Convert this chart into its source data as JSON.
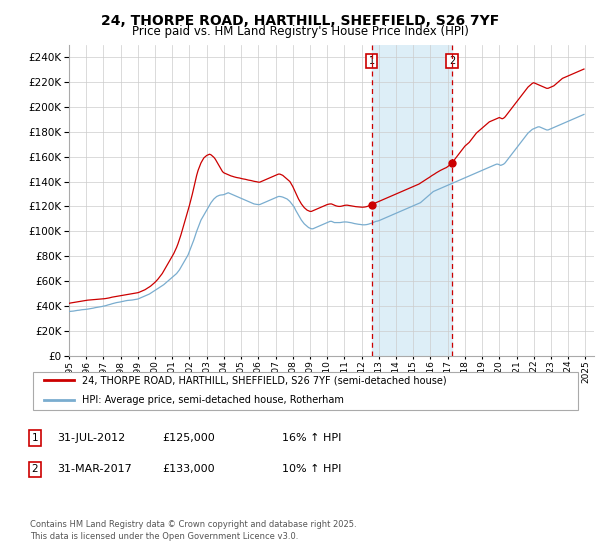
{
  "title": "24, THORPE ROAD, HARTHILL, SHEFFIELD, S26 7YF",
  "subtitle": "Price paid vs. HM Land Registry's House Price Index (HPI)",
  "ylim": [
    0,
    250000
  ],
  "yticks": [
    0,
    20000,
    40000,
    60000,
    80000,
    100000,
    120000,
    140000,
    160000,
    180000,
    200000,
    220000,
    240000
  ],
  "xlim": [
    1995.0,
    2025.5
  ],
  "line1_color": "#cc0000",
  "line2_color": "#7aadcf",
  "fill_color": "#ddeef7",
  "annotation1_year": 2012.58,
  "annotation2_year": 2017.25,
  "legend_label1": "24, THORPE ROAD, HARTHILL, SHEFFIELD, S26 7YF (semi-detached house)",
  "legend_label2": "HPI: Average price, semi-detached house, Rotherham",
  "sale1_date": "31-JUL-2012",
  "sale1_price": "£125,000",
  "sale1_hpi": "16% ↑ HPI",
  "sale2_date": "31-MAR-2017",
  "sale2_price": "£133,000",
  "sale2_hpi": "10% ↑ HPI",
  "footnote3": "Contains HM Land Registry data © Crown copyright and database right 2025.",
  "footnote4": "This data is licensed under the Open Government Licence v3.0.",
  "hpi_years": [
    1995.0,
    1995.083,
    1995.167,
    1995.25,
    1995.333,
    1995.417,
    1995.5,
    1995.583,
    1995.667,
    1995.75,
    1995.833,
    1995.917,
    1996.0,
    1996.083,
    1996.167,
    1996.25,
    1996.333,
    1996.417,
    1996.5,
    1996.583,
    1996.667,
    1996.75,
    1996.833,
    1996.917,
    1997.0,
    1997.083,
    1997.167,
    1997.25,
    1997.333,
    1997.417,
    1997.5,
    1997.583,
    1997.667,
    1997.75,
    1997.833,
    1997.917,
    1998.0,
    1998.083,
    1998.167,
    1998.25,
    1998.333,
    1998.417,
    1998.5,
    1998.583,
    1998.667,
    1998.75,
    1998.833,
    1998.917,
    1999.0,
    1999.083,
    1999.167,
    1999.25,
    1999.333,
    1999.417,
    1999.5,
    1999.583,
    1999.667,
    1999.75,
    1999.833,
    1999.917,
    2000.0,
    2000.083,
    2000.167,
    2000.25,
    2000.333,
    2000.417,
    2000.5,
    2000.583,
    2000.667,
    2000.75,
    2000.833,
    2000.917,
    2001.0,
    2001.083,
    2001.167,
    2001.25,
    2001.333,
    2001.417,
    2001.5,
    2001.583,
    2001.667,
    2001.75,
    2001.833,
    2001.917,
    2002.0,
    2002.083,
    2002.167,
    2002.25,
    2002.333,
    2002.417,
    2002.5,
    2002.583,
    2002.667,
    2002.75,
    2002.833,
    2002.917,
    2003.0,
    2003.083,
    2003.167,
    2003.25,
    2003.333,
    2003.417,
    2003.5,
    2003.583,
    2003.667,
    2003.75,
    2003.833,
    2003.917,
    2004.0,
    2004.083,
    2004.167,
    2004.25,
    2004.333,
    2004.417,
    2004.5,
    2004.583,
    2004.667,
    2004.75,
    2004.833,
    2004.917,
    2005.0,
    2005.083,
    2005.167,
    2005.25,
    2005.333,
    2005.417,
    2005.5,
    2005.583,
    2005.667,
    2005.75,
    2005.833,
    2005.917,
    2006.0,
    2006.083,
    2006.167,
    2006.25,
    2006.333,
    2006.417,
    2006.5,
    2006.583,
    2006.667,
    2006.75,
    2006.833,
    2006.917,
    2007.0,
    2007.083,
    2007.167,
    2007.25,
    2007.333,
    2007.417,
    2007.5,
    2007.583,
    2007.667,
    2007.75,
    2007.833,
    2007.917,
    2008.0,
    2008.083,
    2008.167,
    2008.25,
    2008.333,
    2008.417,
    2008.5,
    2008.583,
    2008.667,
    2008.75,
    2008.833,
    2008.917,
    2009.0,
    2009.083,
    2009.167,
    2009.25,
    2009.333,
    2009.417,
    2009.5,
    2009.583,
    2009.667,
    2009.75,
    2009.833,
    2009.917,
    2010.0,
    2010.083,
    2010.167,
    2010.25,
    2010.333,
    2010.417,
    2010.5,
    2010.583,
    2010.667,
    2010.75,
    2010.833,
    2010.917,
    2011.0,
    2011.083,
    2011.167,
    2011.25,
    2011.333,
    2011.417,
    2011.5,
    2011.583,
    2011.667,
    2011.75,
    2011.833,
    2011.917,
    2012.0,
    2012.083,
    2012.167,
    2012.25,
    2012.333,
    2012.417,
    2012.5,
    2012.583,
    2012.667,
    2012.75,
    2012.833,
    2012.917,
    2013.0,
    2013.083,
    2013.167,
    2013.25,
    2013.333,
    2013.417,
    2013.5,
    2013.583,
    2013.667,
    2013.75,
    2013.833,
    2013.917,
    2014.0,
    2014.083,
    2014.167,
    2014.25,
    2014.333,
    2014.417,
    2014.5,
    2014.583,
    2014.667,
    2014.75,
    2014.833,
    2014.917,
    2015.0,
    2015.083,
    2015.167,
    2015.25,
    2015.333,
    2015.417,
    2015.5,
    2015.583,
    2015.667,
    2015.75,
    2015.833,
    2015.917,
    2016.0,
    2016.083,
    2016.167,
    2016.25,
    2016.333,
    2016.417,
    2016.5,
    2016.583,
    2016.667,
    2016.75,
    2016.833,
    2016.917,
    2017.0,
    2017.083,
    2017.167,
    2017.25,
    2017.333,
    2017.417,
    2017.5,
    2017.583,
    2017.667,
    2017.75,
    2017.833,
    2017.917,
    2018.0,
    2018.083,
    2018.167,
    2018.25,
    2018.333,
    2018.417,
    2018.5,
    2018.583,
    2018.667,
    2018.75,
    2018.833,
    2018.917,
    2019.0,
    2019.083,
    2019.167,
    2019.25,
    2019.333,
    2019.417,
    2019.5,
    2019.583,
    2019.667,
    2019.75,
    2019.833,
    2019.917,
    2020.0,
    2020.083,
    2020.167,
    2020.25,
    2020.333,
    2020.417,
    2020.5,
    2020.583,
    2020.667,
    2020.75,
    2020.833,
    2020.917,
    2021.0,
    2021.083,
    2021.167,
    2021.25,
    2021.333,
    2021.417,
    2021.5,
    2021.583,
    2021.667,
    2021.75,
    2021.833,
    2021.917,
    2022.0,
    2022.083,
    2022.167,
    2022.25,
    2022.333,
    2022.417,
    2022.5,
    2022.583,
    2022.667,
    2022.75,
    2022.833,
    2022.917,
    2023.0,
    2023.083,
    2023.167,
    2023.25,
    2023.333,
    2023.417,
    2023.5,
    2023.583,
    2023.667,
    2023.75,
    2023.833,
    2023.917,
    2024.0,
    2024.083,
    2024.167,
    2024.25,
    2024.333,
    2024.417,
    2024.5,
    2024.583,
    2024.667,
    2024.75,
    2024.833,
    2024.917
  ],
  "hpi_values": [
    35500,
    35600,
    35700,
    35800,
    36000,
    36200,
    36400,
    36500,
    36700,
    36900,
    37000,
    37100,
    37200,
    37400,
    37600,
    37800,
    38000,
    38200,
    38500,
    38700,
    38900,
    39100,
    39300,
    39500,
    39800,
    40000,
    40300,
    40700,
    41000,
    41300,
    41700,
    42000,
    42300,
    42600,
    42800,
    43000,
    43200,
    43500,
    43700,
    44000,
    44200,
    44400,
    44500,
    44600,
    44700,
    44900,
    45100,
    45300,
    45500,
    46000,
    46500,
    47000,
    47500,
    48000,
    48500,
    49000,
    49500,
    50200,
    51000,
    51800,
    52500,
    53200,
    54000,
    54800,
    55500,
    56300,
    57000,
    58000,
    59000,
    60000,
    61000,
    62000,
    63000,
    64000,
    65000,
    66000,
    67500,
    69000,
    71000,
    73000,
    75000,
    77000,
    79000,
    81000,
    84000,
    87000,
    90000,
    93000,
    96500,
    100000,
    103000,
    106000,
    109000,
    111000,
    113000,
    115000,
    117000,
    119000,
    121000,
    123000,
    124500,
    126000,
    127000,
    128000,
    128500,
    129000,
    129200,
    129300,
    129500,
    130000,
    130500,
    131000,
    130500,
    130000,
    129500,
    129000,
    128500,
    128000,
    127500,
    127000,
    126500,
    126000,
    125500,
    125000,
    124500,
    124000,
    123500,
    123000,
    122500,
    122000,
    121800,
    121600,
    121500,
    121500,
    122000,
    122500,
    123000,
    123500,
    124000,
    124500,
    125000,
    125500,
    126000,
    126500,
    127000,
    127500,
    128000,
    128000,
    127800,
    127500,
    127000,
    126500,
    126000,
    125000,
    124000,
    122500,
    121000,
    119500,
    117000,
    115000,
    113000,
    111000,
    109000,
    107500,
    106000,
    105000,
    104000,
    103000,
    102500,
    102000,
    102000,
    102500,
    103000,
    103500,
    104000,
    104500,
    105000,
    105500,
    106000,
    106500,
    107000,
    107500,
    108000,
    108000,
    107500,
    107000,
    107000,
    107000,
    107000,
    107000,
    107200,
    107400,
    107500,
    107500,
    107400,
    107200,
    107000,
    106800,
    106500,
    106200,
    106000,
    105800,
    105600,
    105500,
    105300,
    105200,
    105200,
    105300,
    105500,
    105800,
    106200,
    106500,
    107000,
    107500,
    108000,
    108200,
    108500,
    109000,
    109500,
    110000,
    110500,
    111000,
    111500,
    112000,
    112500,
    113000,
    113500,
    114000,
    114500,
    115000,
    115500,
    116000,
    116500,
    117000,
    117500,
    118000,
    118500,
    119000,
    119500,
    120000,
    120500,
    121000,
    121500,
    122000,
    122500,
    123000,
    124000,
    125000,
    126000,
    127000,
    128000,
    129000,
    130000,
    131000,
    132000,
    132500,
    133000,
    133500,
    134000,
    134500,
    135000,
    135500,
    136000,
    136500,
    137000,
    137500,
    138000,
    138500,
    139000,
    139500,
    140000,
    140500,
    141000,
    141500,
    142000,
    142500,
    143000,
    143500,
    144000,
    144500,
    145000,
    145500,
    146000,
    146500,
    147000,
    147500,
    148000,
    148500,
    149000,
    149500,
    150000,
    150500,
    151000,
    151500,
    152000,
    152500,
    153000,
    153500,
    154000,
    154000,
    153500,
    153000,
    153500,
    154000,
    155000,
    156500,
    158000,
    159500,
    161000,
    162500,
    164000,
    165500,
    167000,
    168500,
    170000,
    171500,
    173000,
    174500,
    176000,
    177500,
    179000,
    180000,
    181000,
    182000,
    182500,
    183000,
    183500,
    184000,
    184000,
    183500,
    183000,
    182500,
    182000,
    181500,
    181500,
    182000,
    182500,
    183000,
    183500,
    184000,
    184500,
    185000,
    185500,
    186000,
    186500,
    187000,
    187500,
    188000,
    188500,
    189000,
    189500,
    190000,
    190500,
    191000,
    191500,
    192000,
    192500,
    193000,
    193500,
    194000
  ],
  "pp_years": [
    1995.0,
    1995.083,
    1995.167,
    1995.25,
    1995.333,
    1995.417,
    1995.5,
    1995.583,
    1995.667,
    1995.75,
    1995.833,
    1995.917,
    1996.0,
    1996.083,
    1996.167,
    1996.25,
    1996.333,
    1996.417,
    1996.5,
    1996.583,
    1996.667,
    1996.75,
    1996.833,
    1996.917,
    1997.0,
    1997.083,
    1997.167,
    1997.25,
    1997.333,
    1997.417,
    1997.5,
    1997.583,
    1997.667,
    1997.75,
    1997.833,
    1997.917,
    1998.0,
    1998.083,
    1998.167,
    1998.25,
    1998.333,
    1998.417,
    1998.5,
    1998.583,
    1998.667,
    1998.75,
    1998.833,
    1998.917,
    1999.0,
    1999.083,
    1999.167,
    1999.25,
    1999.333,
    1999.417,
    1999.5,
    1999.583,
    1999.667,
    1999.75,
    1999.833,
    1999.917,
    2000.0,
    2000.083,
    2000.167,
    2000.25,
    2000.333,
    2000.417,
    2000.5,
    2000.583,
    2000.667,
    2000.75,
    2000.833,
    2000.917,
    2001.0,
    2001.083,
    2001.167,
    2001.25,
    2001.333,
    2001.417,
    2001.5,
    2001.583,
    2001.667,
    2001.75,
    2001.833,
    2001.917,
    2002.0,
    2002.083,
    2002.167,
    2002.25,
    2002.333,
    2002.417,
    2002.5,
    2002.583,
    2002.667,
    2002.75,
    2002.833,
    2002.917,
    2003.0,
    2003.083,
    2003.167,
    2003.25,
    2003.333,
    2003.417,
    2003.5,
    2003.583,
    2003.667,
    2003.75,
    2003.833,
    2003.917,
    2004.0,
    2004.083,
    2004.167,
    2004.25,
    2004.333,
    2004.417,
    2004.5,
    2004.583,
    2004.667,
    2004.75,
    2004.833,
    2004.917,
    2005.0,
    2005.083,
    2005.167,
    2005.25,
    2005.333,
    2005.417,
    2005.5,
    2005.583,
    2005.667,
    2005.75,
    2005.833,
    2005.917,
    2006.0,
    2006.083,
    2006.167,
    2006.25,
    2006.333,
    2006.417,
    2006.5,
    2006.583,
    2006.667,
    2006.75,
    2006.833,
    2006.917,
    2007.0,
    2007.083,
    2007.167,
    2007.25,
    2007.333,
    2007.417,
    2007.5,
    2007.583,
    2007.667,
    2007.75,
    2007.833,
    2007.917,
    2008.0,
    2008.083,
    2008.167,
    2008.25,
    2008.333,
    2008.417,
    2008.5,
    2008.583,
    2008.667,
    2008.75,
    2008.833,
    2008.917,
    2009.0,
    2009.083,
    2009.167,
    2009.25,
    2009.333,
    2009.417,
    2009.5,
    2009.583,
    2009.667,
    2009.75,
    2009.833,
    2009.917,
    2010.0,
    2010.083,
    2010.167,
    2010.25,
    2010.333,
    2010.417,
    2010.5,
    2010.583,
    2010.667,
    2010.75,
    2010.833,
    2010.917,
    2011.0,
    2011.083,
    2011.167,
    2011.25,
    2011.333,
    2011.417,
    2011.5,
    2011.583,
    2011.667,
    2011.75,
    2011.833,
    2011.917,
    2012.0,
    2012.083,
    2012.167,
    2012.25,
    2012.333,
    2012.417,
    2012.5,
    2012.583,
    2012.667,
    2012.75,
    2012.833,
    2012.917,
    2013.0,
    2013.083,
    2013.167,
    2013.25,
    2013.333,
    2013.417,
    2013.5,
    2013.583,
    2013.667,
    2013.75,
    2013.833,
    2013.917,
    2014.0,
    2014.083,
    2014.167,
    2014.25,
    2014.333,
    2014.417,
    2014.5,
    2014.583,
    2014.667,
    2014.75,
    2014.833,
    2014.917,
    2015.0,
    2015.083,
    2015.167,
    2015.25,
    2015.333,
    2015.417,
    2015.5,
    2015.583,
    2015.667,
    2015.75,
    2015.833,
    2015.917,
    2016.0,
    2016.083,
    2016.167,
    2016.25,
    2016.333,
    2016.417,
    2016.5,
    2016.583,
    2016.667,
    2016.75,
    2016.833,
    2016.917,
    2017.0,
    2017.083,
    2017.167,
    2017.25,
    2017.333,
    2017.417,
    2017.5,
    2017.583,
    2017.667,
    2017.75,
    2017.833,
    2017.917,
    2018.0,
    2018.083,
    2018.167,
    2018.25,
    2018.333,
    2018.417,
    2018.5,
    2018.583,
    2018.667,
    2018.75,
    2018.833,
    2018.917,
    2019.0,
    2019.083,
    2019.167,
    2019.25,
    2019.333,
    2019.417,
    2019.5,
    2019.583,
    2019.667,
    2019.75,
    2019.833,
    2019.917,
    2020.0,
    2020.083,
    2020.167,
    2020.25,
    2020.333,
    2020.417,
    2020.5,
    2020.583,
    2020.667,
    2020.75,
    2020.833,
    2020.917,
    2021.0,
    2021.083,
    2021.167,
    2021.25,
    2021.333,
    2021.417,
    2021.5,
    2021.583,
    2021.667,
    2021.75,
    2021.833,
    2021.917,
    2022.0,
    2022.083,
    2022.167,
    2022.25,
    2022.333,
    2022.417,
    2022.5,
    2022.583,
    2022.667,
    2022.75,
    2022.833,
    2022.917,
    2023.0,
    2023.083,
    2023.167,
    2023.25,
    2023.333,
    2023.417,
    2023.5,
    2023.583,
    2023.667,
    2023.75,
    2023.833,
    2023.917,
    2024.0,
    2024.083,
    2024.167,
    2024.25,
    2024.333,
    2024.417,
    2024.5,
    2024.583,
    2024.667,
    2024.75,
    2024.833,
    2024.917
  ],
  "pp_values": [
    42000,
    42300,
    42500,
    42700,
    42900,
    43100,
    43300,
    43500,
    43700,
    43900,
    44100,
    44300,
    44500,
    44600,
    44700,
    44800,
    44900,
    45000,
    45100,
    45200,
    45300,
    45400,
    45500,
    45600,
    45700,
    45800,
    46000,
    46200,
    46400,
    46700,
    47000,
    47200,
    47400,
    47600,
    47800,
    48000,
    48200,
    48400,
    48600,
    48800,
    49000,
    49200,
    49400,
    49600,
    49800,
    50000,
    50200,
    50400,
    50600,
    51000,
    51500,
    52000,
    52500,
    53000,
    53800,
    54500,
    55200,
    56000,
    57000,
    58000,
    59000,
    60200,
    61500,
    63000,
    64500,
    66000,
    68000,
    70000,
    72000,
    74000,
    76000,
    78000,
    80000,
    82000,
    84500,
    87000,
    90000,
    93500,
    97000,
    101000,
    105000,
    109000,
    113000,
    117000,
    121000,
    125500,
    130000,
    135000,
    140000,
    145000,
    149000,
    152000,
    155000,
    157000,
    159000,
    160000,
    161000,
    161500,
    162000,
    161500,
    160500,
    159500,
    158000,
    156000,
    154000,
    152000,
    150000,
    148000,
    147000,
    146500,
    146000,
    145500,
    145000,
    144500,
    144200,
    143800,
    143500,
    143200,
    143000,
    142800,
    142500,
    142200,
    142000,
    141800,
    141500,
    141200,
    141000,
    140800,
    140500,
    140200,
    140000,
    139800,
    139500,
    139500,
    140000,
    140500,
    141000,
    141500,
    142000,
    142500,
    143000,
    143500,
    144000,
    144500,
    145000,
    145500,
    146000,
    146000,
    145500,
    145000,
    144000,
    143000,
    142000,
    141000,
    140000,
    138000,
    136000,
    133500,
    131000,
    128500,
    126000,
    124000,
    122000,
    120500,
    119000,
    118000,
    117000,
    116500,
    116000,
    116000,
    116500,
    117000,
    117500,
    118000,
    118500,
    119000,
    119500,
    120000,
    120500,
    121000,
    121500,
    121800,
    122000,
    122000,
    121500,
    121000,
    120500,
    120200,
    120000,
    120000,
    120200,
    120500,
    120800,
    121000,
    121000,
    120800,
    120600,
    120400,
    120200,
    120000,
    119800,
    119700,
    119600,
    119500,
    119400,
    119400,
    119500,
    119700,
    120000,
    120500,
    121000,
    121500,
    122000,
    122500,
    123000,
    123500,
    124000,
    124500,
    125000,
    125500,
    126000,
    126500,
    127000,
    127500,
    128000,
    128500,
    129000,
    129500,
    130000,
    130500,
    131000,
    131500,
    132000,
    132500,
    133000,
    133500,
    134000,
    134500,
    135000,
    135500,
    136000,
    136500,
    137000,
    137500,
    138000,
    138800,
    139500,
    140200,
    141000,
    141800,
    142500,
    143200,
    144000,
    144800,
    145500,
    146200,
    147000,
    147700,
    148400,
    149000,
    149600,
    150200,
    150700,
    151200,
    152000,
    153000,
    154000,
    155000,
    156500,
    158000,
    159500,
    161000,
    162500,
    164000,
    165500,
    167000,
    168500,
    169500,
    170500,
    171500,
    173000,
    174500,
    176000,
    177500,
    179000,
    180000,
    181000,
    182000,
    183000,
    184000,
    185000,
    186000,
    187000,
    188000,
    188500,
    189000,
    189500,
    190000,
    190500,
    191000,
    191500,
    191000,
    190500,
    191000,
    192000,
    193500,
    195000,
    196500,
    198000,
    199500,
    201000,
    202500,
    204000,
    205500,
    207000,
    208500,
    210000,
    211500,
    213000,
    214500,
    216000,
    217000,
    218000,
    219000,
    219500,
    219000,
    218500,
    218000,
    217500,
    217000,
    216500,
    216000,
    215500,
    215000,
    215000,
    215500,
    216000,
    216500,
    217000,
    218000,
    219000,
    220000,
    221000,
    222000,
    223000,
    223500,
    224000,
    224500,
    225000,
    225500,
    226000,
    226500,
    227000,
    227500,
    228000,
    228500,
    229000,
    229500,
    230000,
    230500
  ]
}
